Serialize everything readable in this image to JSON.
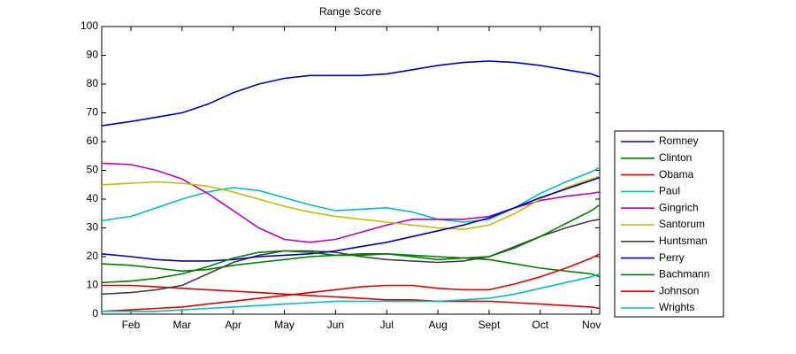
{
  "chart_data": {
    "type": "line",
    "title": "Range Score",
    "x": [
      1.43,
      2,
      2.5,
      3,
      3.5,
      4,
      4.5,
      5,
      5.5,
      6,
      6.5,
      7,
      7.5,
      8,
      8.5,
      9,
      9.5,
      10,
      10.5,
      11,
      11.16
    ],
    "xlim": [
      1.43,
      11.16
    ],
    "xticks": [
      {
        "value": 2,
        "label": "Feb"
      },
      {
        "value": 3,
        "label": "Mar"
      },
      {
        "value": 4,
        "label": "Apr"
      },
      {
        "value": 5,
        "label": "May"
      },
      {
        "value": 6,
        "label": "Jun"
      },
      {
        "value": 7,
        "label": "Jul"
      },
      {
        "value": 8,
        "label": "Aug"
      },
      {
        "value": 9,
        "label": "Sept"
      },
      {
        "value": 10,
        "label": "Oct"
      },
      {
        "value": 11,
        "label": "Nov"
      }
    ],
    "ylim": [
      0,
      100
    ],
    "yticks": [
      0,
      10,
      20,
      30,
      40,
      50,
      60,
      70,
      80,
      90,
      100
    ],
    "grid": false,
    "legend": "outside-right",
    "series": [
      {
        "name": "Romney",
        "color": "#0000bf",
        "values": [
          65.5,
          67,
          68.5,
          70,
          73,
          77,
          80,
          82,
          83,
          83,
          83,
          83.5,
          85,
          86.5,
          87.5,
          88,
          87.5,
          86.5,
          85,
          83.5,
          82.5
        ]
      },
      {
        "name": "Clinton",
        "color": "#007f00",
        "values": [
          17.5,
          17,
          16,
          15,
          15.5,
          17,
          18,
          19,
          20,
          20.5,
          21,
          21,
          20.5,
          20,
          19.5,
          19,
          17.5,
          16,
          15,
          14,
          13
        ]
      },
      {
        "name": "Obama",
        "color": "#e00000",
        "values": [
          10,
          10,
          9.5,
          9,
          8.5,
          8,
          7.5,
          7,
          6.5,
          6,
          5.5,
          5,
          5,
          4.5,
          4.5,
          4.5,
          4,
          3.5,
          3,
          2.5,
          2
        ]
      },
      {
        "name": "Paul",
        "color": "#00bfbf",
        "values": [
          32.5,
          34,
          37,
          40,
          42.5,
          44,
          43,
          40.5,
          38,
          36,
          36.5,
          37,
          35.5,
          33,
          32,
          33,
          37,
          42,
          46,
          49.5,
          51
        ]
      },
      {
        "name": "Gingrich",
        "color": "#bf00bf",
        "values": [
          52.5,
          52,
          50,
          47,
          42,
          36,
          30,
          26,
          25,
          26,
          28.5,
          31,
          33,
          33,
          33,
          34,
          37,
          39.5,
          41,
          42,
          42.5
        ]
      },
      {
        "name": "Santorum",
        "color": "#bfbf00",
        "values": [
          45,
          45.5,
          46,
          45.5,
          44.5,
          42.5,
          40,
          37.5,
          35.5,
          34,
          33,
          32,
          31,
          30,
          29.5,
          31,
          35,
          40,
          44,
          47,
          48
        ]
      },
      {
        "name": "Huntsman",
        "color": "#404040",
        "values": [
          7,
          7.5,
          8.5,
          10,
          14,
          18,
          20.5,
          22,
          22,
          21.5,
          20,
          19,
          18.5,
          18,
          18.5,
          20,
          23.5,
          27,
          30,
          32.5,
          33
        ]
      },
      {
        "name": "Perry",
        "color": "#0000bf",
        "values": [
          21,
          20,
          19,
          18.5,
          18.5,
          19,
          20,
          20.5,
          21,
          22,
          23.5,
          25,
          27,
          29,
          31,
          33.5,
          37,
          40.5,
          43.5,
          46.5,
          47.5
        ]
      },
      {
        "name": "Bachmann",
        "color": "#007f00",
        "values": [
          11,
          11.5,
          12.5,
          14,
          16.5,
          19.5,
          21.5,
          22,
          21.5,
          20.5,
          20.5,
          21,
          20,
          19,
          19.5,
          20,
          23,
          27,
          31.5,
          36,
          38
        ]
      },
      {
        "name": "Johnson",
        "color": "#e00000",
        "values": [
          1,
          1.5,
          2,
          2.5,
          3.5,
          4.5,
          5.5,
          6.5,
          7.5,
          8.5,
          9.5,
          10,
          10,
          9,
          8.5,
          8.5,
          10.5,
          13,
          16,
          19.5,
          21
        ]
      },
      {
        "name": "Wrights",
        "color": "#00bfbf",
        "values": [
          1,
          1,
          1,
          1.5,
          2,
          2.5,
          3,
          3.5,
          4,
          4.5,
          4.5,
          4.5,
          4.5,
          4.5,
          5,
          5.5,
          7,
          9,
          11,
          13,
          14
        ]
      }
    ]
  }
}
